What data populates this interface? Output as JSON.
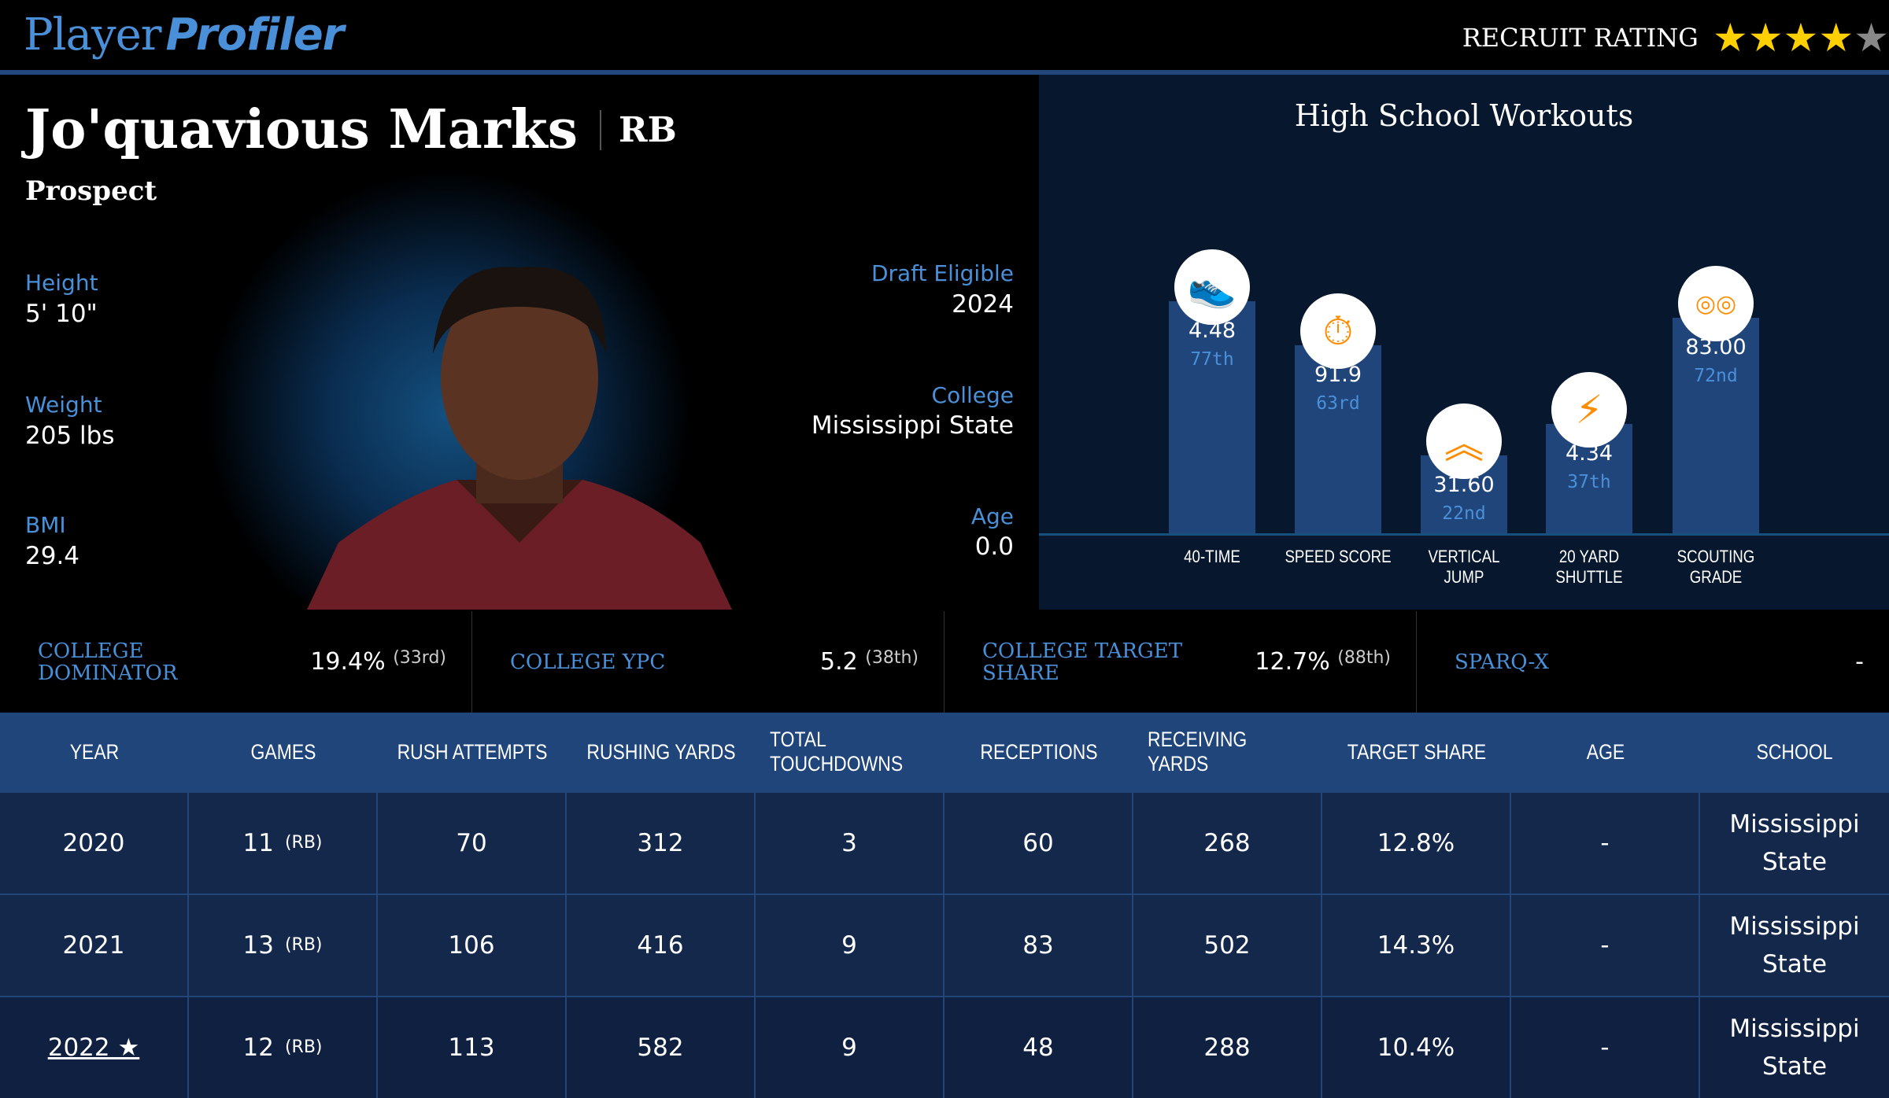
{
  "header": {
    "logo_part1": "Player",
    "logo_part2": "Profiler",
    "rating_label": "RECRUIT RATING",
    "rating_stars": 4,
    "rating_max": 5,
    "star_color": "#ffd000",
    "star_off_color": "#888888"
  },
  "player": {
    "name": "Jo'quavious Marks",
    "position": "RB",
    "status": "Prospect",
    "height_label": "Height",
    "height": "5' 10\"",
    "weight_label": "Weight",
    "weight": "205 lbs",
    "bmi_label": "BMI",
    "bmi": "29.4",
    "draft_label": "Draft Eligible",
    "draft": "2024",
    "college_label": "College",
    "college": "Mississippi State",
    "age_label": "Age",
    "age": "0.0"
  },
  "workouts": {
    "title": "High School Workouts",
    "items": [
      {
        "label": "40-TIME",
        "value": "4.48",
        "pct": "77th",
        "icon": "running-shoe-icon",
        "percentile": 77
      },
      {
        "label": "SPEED SCORE",
        "value": "91.9",
        "pct": "63rd",
        "icon": "stopwatch-icon",
        "percentile": 63
      },
      {
        "label": "VERTICAL JUMP",
        "value": "31.60",
        "pct": "22nd",
        "icon": "chevrons-up-icon",
        "percentile": 22
      },
      {
        "label": "20 YARD SHUTTLE",
        "value": "4.34",
        "pct": "37th",
        "icon": "lightning-icon",
        "percentile": 37
      },
      {
        "label": "SCOUTING GRADE",
        "value": "83.00",
        "pct": "72nd",
        "icon": "binoculars-icon",
        "percentile": 72
      }
    ]
  },
  "stats": [
    {
      "label": "COLLEGE DOMINATOR",
      "value": "19.4%",
      "rank": "(33rd)"
    },
    {
      "label": "COLLEGE YPC",
      "value": "5.2",
      "rank": "(38th)"
    },
    {
      "label": "COLLEGE TARGET SHARE",
      "value": "12.7%",
      "rank": "(88th)"
    },
    {
      "label": "SPARQ-X",
      "value": "-",
      "rank": ""
    }
  ],
  "table": {
    "headers": [
      "YEAR",
      "GAMES",
      "RUSH ATTEMPTS",
      "RUSHING YARDS",
      "TOTAL TOUCHDOWNS",
      "RECEPTIONS",
      "RECEIVING YARDS",
      "TARGET SHARE",
      "AGE",
      "SCHOOL"
    ],
    "rows": [
      {
        "year": "2020",
        "games": "11",
        "pos": "(RB)",
        "rush_att": "70",
        "rush_yds": "312",
        "tds": "3",
        "rec": "60",
        "rec_yds": "268",
        "tgt": "12.8%",
        "age": "-",
        "school": "Mississippi State"
      },
      {
        "year": "2021",
        "games": "13",
        "pos": "(RB)",
        "rush_att": "106",
        "rush_yds": "416",
        "tds": "9",
        "rec": "83",
        "rec_yds": "502",
        "tgt": "14.3%",
        "age": "-",
        "school": "Mississippi State"
      },
      {
        "year": "2022 ★",
        "games": "12",
        "pos": "(RB)",
        "rush_att": "113",
        "rush_yds": "582",
        "tds": "9",
        "rec": "48",
        "rec_yds": "288",
        "tgt": "10.4%",
        "age": "-",
        "school": "Mississippi State"
      }
    ]
  }
}
